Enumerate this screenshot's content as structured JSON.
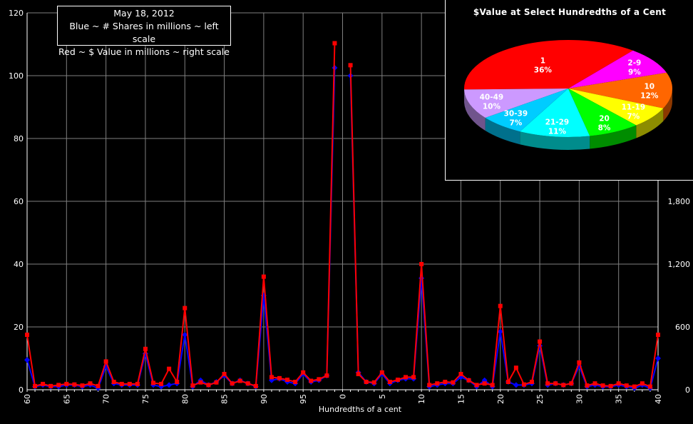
{
  "legend": {
    "date": "May 18, 2012",
    "line1": "Blue ~ # Shares in millions ~ left scale",
    "line2": "Red ~ $ Value in millions ~ right scale"
  },
  "chart_data": [
    {
      "type": "line",
      "xlabel": "Hundredths of a cent",
      "ylabel_left": "",
      "ylabel_right": "",
      "categories": [
        "60",
        "61",
        "62",
        "63",
        "64",
        "65",
        "66",
        "67",
        "68",
        "69",
        "70",
        "71",
        "72",
        "73",
        "74",
        "75",
        "76",
        "77",
        "78",
        "79",
        "80",
        "81",
        "82",
        "83",
        "84",
        "85",
        "86",
        "87",
        "88",
        "89",
        "90",
        "91",
        "92",
        "93",
        "94",
        "95",
        "96",
        "97",
        "98",
        "99",
        "0",
        "1",
        "2",
        "3",
        "4",
        "5",
        "6",
        "7",
        "8",
        "9",
        "10",
        "11",
        "12",
        "13",
        "14",
        "15",
        "16",
        "17",
        "18",
        "19",
        "20",
        "21",
        "22",
        "23",
        "24",
        "25",
        "26",
        "27",
        "28",
        "29",
        "30",
        "31",
        "32",
        "33",
        "34",
        "35",
        "36",
        "37",
        "38",
        "39",
        "40"
      ],
      "x_tick_labels": [
        "60",
        "65",
        "70",
        "75",
        "80",
        "85",
        "90",
        "95",
        "0",
        "5",
        "10",
        "15",
        "20",
        "25",
        "30",
        "35",
        "40"
      ],
      "left_axis": {
        "ticks": [
          0,
          20,
          40,
          60,
          80,
          100,
          120
        ],
        "ylim": [
          0,
          120
        ]
      },
      "right_axis": {
        "ticks": [
          "0",
          "600",
          "1,200",
          "1,800"
        ],
        "ylim": [
          0,
          3600
        ]
      },
      "grid": true,
      "series": [
        {
          "color": "#0000ff",
          "axis": "left",
          "values": [
            9.5,
            1,
            1.5,
            1,
            1,
            1.5,
            1.5,
            1,
            1.5,
            0.5,
            7.5,
            2,
            1.5,
            1.5,
            1.5,
            11.5,
            1.5,
            1,
            1.5,
            2,
            17.5,
            1,
            3,
            1.5,
            2.5,
            4.5,
            2,
            3,
            2,
            1,
            30,
            3,
            3.5,
            2.5,
            2,
            5,
            2.5,
            3,
            4.5,
            102.5,
            null,
            100,
            5.5,
            2.5,
            2,
            5,
            2,
            3,
            3.5,
            3.5,
            35.5,
            1,
            1.5,
            2,
            2,
            4,
            3,
            1,
            3,
            1,
            18.5,
            2.5,
            1.5,
            1.5,
            2,
            14,
            1.5,
            2,
            1.5,
            2,
            7.5,
            1,
            1.5,
            1,
            1,
            1.5,
            1,
            0.5,
            1.5,
            0.5,
            10
          ]
        },
        {
          "color": "#ff0000",
          "axis": "right",
          "values": [
            525,
            35,
            55,
            35,
            45,
            55,
            50,
            40,
            60,
            35,
            270,
            75,
            55,
            55,
            55,
            390,
            65,
            55,
            200,
            75,
            780,
            40,
            70,
            45,
            70,
            150,
            60,
            85,
            60,
            35,
            1080,
            120,
            110,
            95,
            75,
            165,
            85,
            100,
            135,
            3310,
            null,
            3100,
            150,
            75,
            70,
            165,
            75,
            95,
            120,
            120,
            1200,
            45,
            60,
            75,
            70,
            150,
            90,
            45,
            60,
            45,
            800,
            75,
            210,
            50,
            75,
            460,
            60,
            60,
            45,
            60,
            260,
            40,
            60,
            40,
            35,
            60,
            40,
            30,
            60,
            30,
            525
          ]
        }
      ]
    },
    {
      "type": "pie",
      "title": "$Value at Select Hundredths of a Cent",
      "slices": [
        {
          "label": "1",
          "percent": "36%",
          "value": 36,
          "color": "#ff0000"
        },
        {
          "label": "2-9",
          "percent": "9%",
          "value": 9,
          "color": "#ff00ff"
        },
        {
          "label": "10",
          "percent": "12%",
          "value": 12,
          "color": "#ff6600"
        },
        {
          "label": "11-19",
          "percent": "7%",
          "value": 7,
          "color": "#ffff00"
        },
        {
          "label": "20",
          "percent": "8%",
          "value": 8,
          "color": "#00ff00"
        },
        {
          "label": "21-29",
          "percent": "11%",
          "value": 11,
          "color": "#00ffff"
        },
        {
          "label": "30-39",
          "percent": "7%",
          "value": 7,
          "color": "#00ccff"
        },
        {
          "label": "40-49",
          "percent": "10%",
          "value": 10,
          "color": "#cc99ff"
        }
      ]
    }
  ]
}
